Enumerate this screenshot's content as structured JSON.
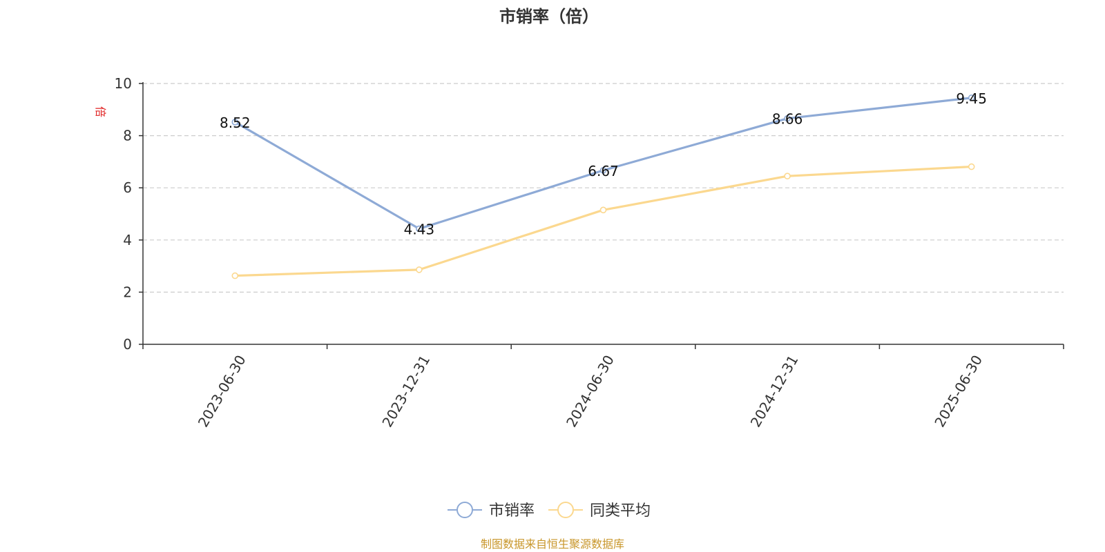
{
  "chart_data": {
    "type": "line",
    "title": "市销率（倍）",
    "ylabel": "倍",
    "categories": [
      "2023-06-30",
      "2023-12-31",
      "2024-06-30",
      "2024-12-31",
      "2025-06-30"
    ],
    "ylim": [
      0,
      10
    ],
    "yticks": [
      0,
      2,
      4,
      6,
      8,
      10
    ],
    "grid": true,
    "legend_position": "bottom",
    "series": [
      {
        "name": "市销率",
        "values": [
          8.52,
          4.43,
          6.67,
          8.66,
          9.45
        ],
        "color": "#8eaad6",
        "show_labels": true
      },
      {
        "name": "同类平均",
        "values": [
          2.63,
          2.86,
          5.15,
          6.45,
          6.81
        ],
        "color": "#fbd88f",
        "show_labels": false
      }
    ],
    "source": "制图数据来自恒生聚源数据库"
  }
}
